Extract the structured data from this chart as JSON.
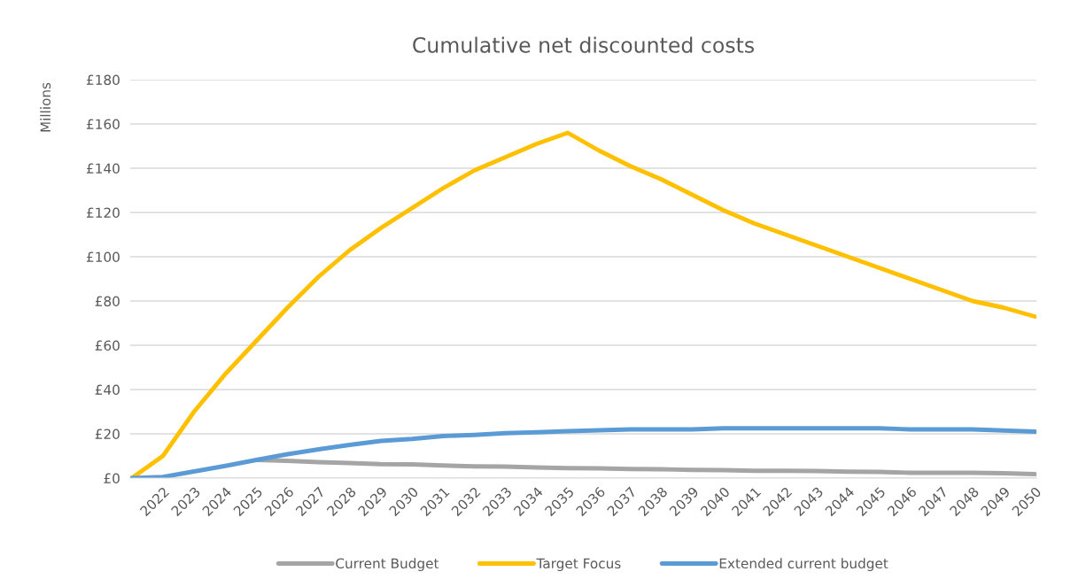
{
  "chart_data": {
    "type": "line",
    "title": "Cumulative net discounted costs",
    "ylabel": "Millions",
    "categories": [
      null,
      "2022",
      "2023",
      "2024",
      "2025",
      "2026",
      "2027",
      "2028",
      "2029",
      "2030",
      "2031",
      "2032",
      "2033",
      "2034",
      "2035",
      "2036",
      "2037",
      "2038",
      "2039",
      "2040",
      "2041",
      "2042",
      "2043",
      "2044",
      "2045",
      "2046",
      "2047",
      "2048",
      "2049",
      "2050"
    ],
    "series": [
      {
        "name": "Current Budget",
        "color": "#a5a5a5",
        "values": [
          null,
          null,
          null,
          null,
          8.2,
          7.8,
          7.2,
          6.8,
          6.3,
          6.2,
          5.7,
          5.3,
          5.2,
          4.8,
          4.5,
          4.4,
          4.1,
          4.0,
          3.7,
          3.6,
          3.3,
          3.3,
          3.2,
          2.9,
          2.8,
          2.4,
          2.4,
          2.4,
          2.2,
          1.8
        ]
      },
      {
        "name": "Target Focus",
        "color": "#ffc000",
        "values": [
          0,
          10,
          30,
          47,
          62,
          77,
          91,
          103,
          113,
          122,
          131,
          139,
          145,
          151,
          156,
          148,
          141,
          135,
          128,
          121,
          115,
          110,
          105,
          100,
          95,
          90,
          85,
          80,
          77,
          73
        ]
      },
      {
        "name": "Extended current budget",
        "color": "#5b9bd5",
        "values": [
          0,
          0.5,
          3,
          5.5,
          8.2,
          10.8,
          13,
          15,
          16.8,
          17.7,
          19,
          19.5,
          20.3,
          20.7,
          21.2,
          21.6,
          22,
          22,
          22,
          22.5,
          22.5,
          22.5,
          22.5,
          22.5,
          22.5,
          22,
          22,
          22,
          21.5,
          21
        ]
      }
    ],
    "ylim": [
      0,
      180
    ],
    "yticks": [
      {
        "value": 0,
        "label": "£0"
      },
      {
        "value": 20,
        "label": "£20"
      },
      {
        "value": 40,
        "label": "£40"
      },
      {
        "value": 60,
        "label": "£60"
      },
      {
        "value": 80,
        "label": "£80"
      },
      {
        "value": 100,
        "label": "£100"
      },
      {
        "value": 120,
        "label": "£120"
      },
      {
        "value": 140,
        "label": "£140"
      },
      {
        "value": 160,
        "label": "£160"
      },
      {
        "value": 180,
        "label": "£180"
      }
    ],
    "grid": "y",
    "legend": "bottom",
    "marker": "none",
    "line_style": "solid"
  }
}
